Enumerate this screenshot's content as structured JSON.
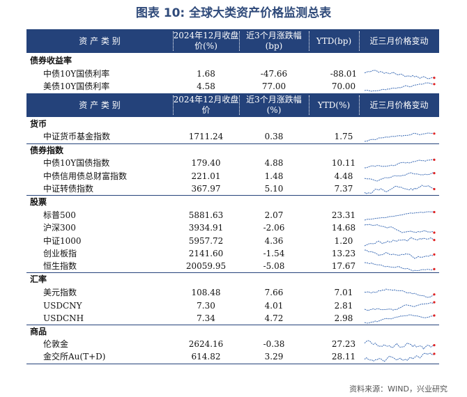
{
  "title": "图表 10: 全球大类资产价格监测总表",
  "header1": {
    "asset_class": "资 产 类 别",
    "value": "2024年12月收盘价(%)",
    "change3m": "近3个月涨跌幅(bp)",
    "ytd": "YTD(bp)",
    "trend": "近三月价格变动"
  },
  "header2": {
    "asset_class": "资 产 类 别",
    "value": "2024年12月收盘价",
    "change3m": "近3个月涨跌幅(%)",
    "ytd": "YTD(%)",
    "trend": "近三月价格变动"
  },
  "groups": [
    {
      "category": "债券收益率",
      "rows": [
        {
          "name": "中债10Y国债利率",
          "value": "1.68",
          "change3m": "-47.66",
          "ytd": "-88.01"
        },
        {
          "name": "美债10Y国债利率",
          "value": "4.58",
          "change3m": "77.00",
          "ytd": "70.00"
        }
      ]
    },
    {
      "category": "货币",
      "rows": [
        {
          "name": "中证货币基金指数",
          "value": "1711.24",
          "change3m": "0.38",
          "ytd": "1.75"
        }
      ]
    },
    {
      "category": "债券指数",
      "rows": [
        {
          "name": "中债10Y国债指数",
          "value": "179.40",
          "change3m": "4.88",
          "ytd": "10.11"
        },
        {
          "name": "中债信用债总财富指数",
          "value": "221.01",
          "change3m": "1.48",
          "ytd": "4.48"
        },
        {
          "name": "中证转债指数",
          "value": "367.97",
          "change3m": "5.10",
          "ytd": "7.37"
        }
      ]
    },
    {
      "category": "股票",
      "rows": [
        {
          "name": "标普500",
          "value": "5881.63",
          "change3m": "2.07",
          "ytd": "23.31"
        },
        {
          "name": "沪深300",
          "value": "3934.91",
          "change3m": "-2.06",
          "ytd": "14.68"
        },
        {
          "name": "中证1000",
          "value": "5957.72",
          "change3m": "4.36",
          "ytd": "1.20"
        },
        {
          "name": "创业板指",
          "value": "2141.60",
          "change3m": "-1.54",
          "ytd": "13.23"
        },
        {
          "name": "恒生指数",
          "value": "20059.95",
          "change3m": "-5.08",
          "ytd": "17.67"
        }
      ]
    },
    {
      "category": "汇率",
      "rows": [
        {
          "name": "美元指数",
          "value": "108.48",
          "change3m": "7.66",
          "ytd": "7.01"
        },
        {
          "name": "USDCNY",
          "value": "7.30",
          "change3m": "4.01",
          "ytd": "2.81"
        },
        {
          "name": "USDCNH",
          "value": "7.34",
          "change3m": "4.72",
          "ytd": "2.98"
        }
      ]
    },
    {
      "category": "商品",
      "rows": [
        {
          "name": "伦敦金",
          "value": "2624.16",
          "change3m": "-0.38",
          "ytd": "27.23"
        },
        {
          "name": "金交所Au(T+D)",
          "value": "614.82",
          "change3m": "3.29",
          "ytd": "28.11"
        }
      ]
    }
  ],
  "source": "资料来源：WIND，兴业研究",
  "colors": {
    "header_bg": "#24427a",
    "spark_line": "#3b6bb5",
    "spark_end": "#e02020"
  }
}
